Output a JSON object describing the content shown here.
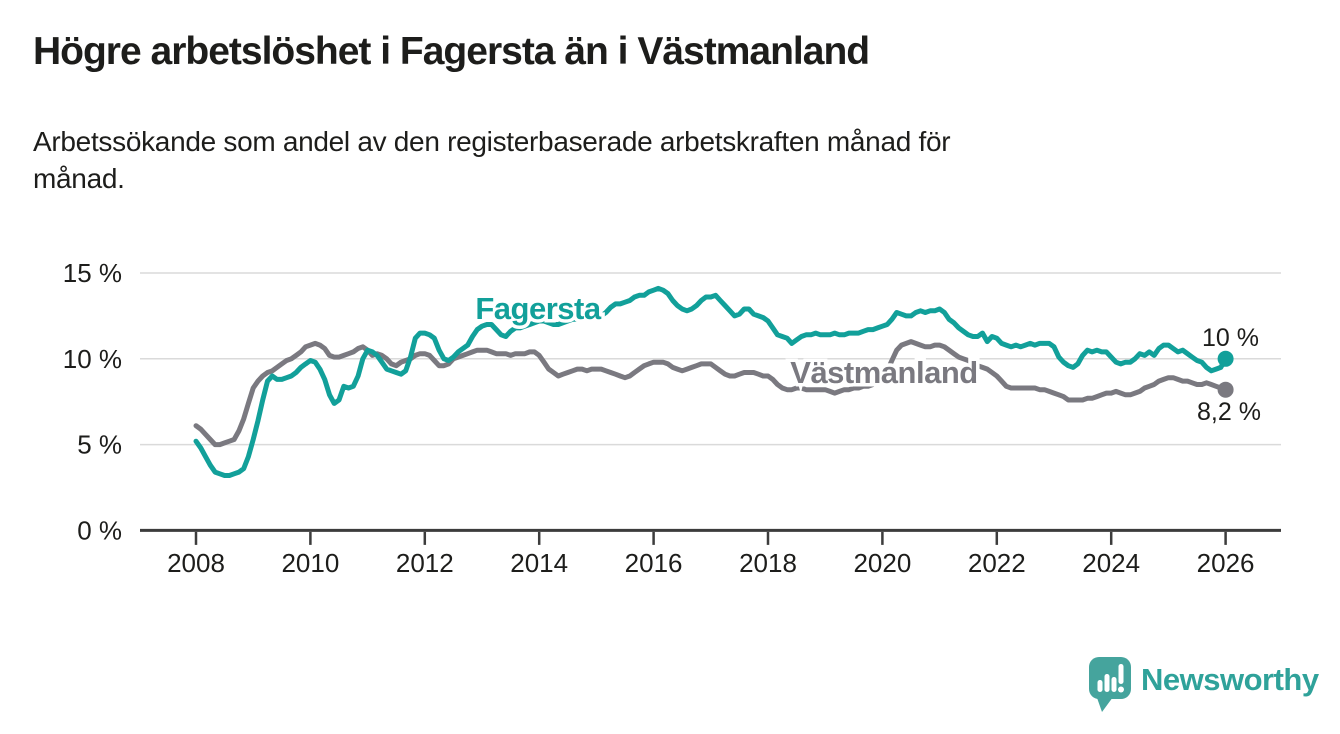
{
  "header": {
    "title": "Högre arbetslöshet i Fagersta än i Västmanland",
    "subtitle": "Arbetssökande som andel av den registerbaserade arbetskraften månad för månad."
  },
  "theme": {
    "background": "#ffffff",
    "text": "#1d1d1b",
    "axis": "#3c3c3c",
    "grid": "#dadada",
    "accent_teal": "#12a09a",
    "accent_gray": "#7a7980",
    "logo_teal": "#45a49d"
  },
  "chart_data": {
    "type": "line",
    "title": "Högre arbetslöshet i Fagersta än i Västmanland",
    "subtitle": "Arbetssökande som andel av den registerbaserade arbetskraften månad för månad.",
    "x_start_year": 2008,
    "x_interval_months": 1,
    "x_end_label": "2026",
    "x_tick_years": [
      2008,
      2010,
      2012,
      2014,
      2016,
      2018,
      2020,
      2022,
      2024,
      2026
    ],
    "y_ticks": [
      {
        "value": 0,
        "label": "0 %"
      },
      {
        "value": 5,
        "label": "5 %"
      },
      {
        "value": 10,
        "label": "10 %"
      },
      {
        "value": 15,
        "label": "15 %"
      }
    ],
    "ylim": [
      0,
      15
    ],
    "grid": true,
    "legend_position": "inline-labels",
    "series": [
      {
        "name": "Västmanland",
        "color": "#7a7980",
        "end_label": "8,2 %",
        "values": [
          6.1,
          5.9,
          5.6,
          5.3,
          5.0,
          5.0,
          5.1,
          5.2,
          5.3,
          5.8,
          6.5,
          7.4,
          8.3,
          8.7,
          9.0,
          9.2,
          9.3,
          9.5,
          9.7,
          9.9,
          10.0,
          10.2,
          10.4,
          10.7,
          10.8,
          10.9,
          10.8,
          10.6,
          10.2,
          10.1,
          10.1,
          10.2,
          10.3,
          10.4,
          10.6,
          10.7,
          10.5,
          10.2,
          10.3,
          10.2,
          10.0,
          9.7,
          9.6,
          9.8,
          9.9,
          10.0,
          10.2,
          10.3,
          10.3,
          10.2,
          9.9,
          9.6,
          9.6,
          9.7,
          10.0,
          10.1,
          10.2,
          10.3,
          10.4,
          10.5,
          10.5,
          10.5,
          10.4,
          10.3,
          10.3,
          10.3,
          10.2,
          10.3,
          10.3,
          10.3,
          10.4,
          10.4,
          10.2,
          9.8,
          9.4,
          9.2,
          9.0,
          9.1,
          9.2,
          9.3,
          9.4,
          9.4,
          9.3,
          9.4,
          9.4,
          9.4,
          9.3,
          9.2,
          9.1,
          9.0,
          8.9,
          9.0,
          9.2,
          9.4,
          9.6,
          9.7,
          9.8,
          9.8,
          9.8,
          9.7,
          9.5,
          9.4,
          9.3,
          9.4,
          9.5,
          9.6,
          9.7,
          9.7,
          9.7,
          9.5,
          9.3,
          9.1,
          9.0,
          9.0,
          9.1,
          9.2,
          9.2,
          9.2,
          9.1,
          9.0,
          9.0,
          8.8,
          8.5,
          8.3,
          8.2,
          8.2,
          8.3,
          8.3,
          8.2,
          8.2,
          8.2,
          8.2,
          8.2,
          8.1,
          8.0,
          8.1,
          8.2,
          8.2,
          8.3,
          8.3,
          8.4,
          8.4,
          8.5,
          8.7,
          9.0,
          9.3,
          9.9,
          10.5,
          10.8,
          10.9,
          11.0,
          10.9,
          10.8,
          10.7,
          10.7,
          10.8,
          10.8,
          10.7,
          10.5,
          10.3,
          10.1,
          10.0,
          9.9,
          9.7,
          9.6,
          9.5,
          9.4,
          9.2,
          9.0,
          8.7,
          8.4,
          8.3,
          8.3,
          8.3,
          8.3,
          8.3,
          8.3,
          8.2,
          8.2,
          8.1,
          8.0,
          7.9,
          7.8,
          7.6,
          7.6,
          7.6,
          7.6,
          7.7,
          7.7,
          7.8,
          7.9,
          8.0,
          8.0,
          8.1,
          8.0,
          7.9,
          7.9,
          8.0,
          8.1,
          8.3,
          8.4,
          8.5,
          8.7,
          8.8,
          8.9,
          8.9,
          8.8,
          8.7,
          8.7,
          8.6,
          8.5,
          8.5,
          8.6,
          8.5,
          8.4,
          8.3,
          8.2
        ]
      },
      {
        "name": "Fagersta",
        "color": "#12a09a",
        "end_label": "10 %",
        "values": [
          5.2,
          4.8,
          4.3,
          3.8,
          3.4,
          3.3,
          3.2,
          3.2,
          3.3,
          3.4,
          3.6,
          4.3,
          5.3,
          6.4,
          7.6,
          8.7,
          9.0,
          8.8,
          8.8,
          8.9,
          9.0,
          9.2,
          9.5,
          9.7,
          9.9,
          9.8,
          9.4,
          8.8,
          7.9,
          7.4,
          7.6,
          8.4,
          8.3,
          8.4,
          9.0,
          10.0,
          10.5,
          10.4,
          10.2,
          9.8,
          9.4,
          9.3,
          9.2,
          9.1,
          9.3,
          10.1,
          11.2,
          11.5,
          11.5,
          11.4,
          11.2,
          10.5,
          10.0,
          9.9,
          10.1,
          10.4,
          10.6,
          10.8,
          11.3,
          11.7,
          11.9,
          12.0,
          12.0,
          11.7,
          11.4,
          11.3,
          11.6,
          11.8,
          11.8,
          11.9,
          12.0,
          12.1,
          12.2,
          12.2,
          12.1,
          12.0,
          12.0,
          12.1,
          12.2,
          12.3,
          12.3,
          12.4,
          12.4,
          12.5,
          12.6,
          12.5,
          12.7,
          13.0,
          13.2,
          13.2,
          13.3,
          13.4,
          13.6,
          13.7,
          13.7,
          13.9,
          14.0,
          14.1,
          14.0,
          13.8,
          13.4,
          13.1,
          12.9,
          12.8,
          12.9,
          13.1,
          13.4,
          13.6,
          13.6,
          13.7,
          13.4,
          13.1,
          12.8,
          12.5,
          12.6,
          12.9,
          12.9,
          12.6,
          12.5,
          12.4,
          12.2,
          11.8,
          11.4,
          11.3,
          11.2,
          10.9,
          11.1,
          11.3,
          11.4,
          11.4,
          11.5,
          11.4,
          11.4,
          11.4,
          11.5,
          11.4,
          11.4,
          11.5,
          11.5,
          11.5,
          11.6,
          11.7,
          11.7,
          11.8,
          11.9,
          12.0,
          12.3,
          12.7,
          12.6,
          12.5,
          12.5,
          12.7,
          12.8,
          12.7,
          12.8,
          12.8,
          12.9,
          12.7,
          12.3,
          12.1,
          11.8,
          11.6,
          11.4,
          11.3,
          11.3,
          11.5,
          11.0,
          11.3,
          11.2,
          10.9,
          10.8,
          10.7,
          10.8,
          10.7,
          10.8,
          10.9,
          10.8,
          10.9,
          10.9,
          10.9,
          10.7,
          10.1,
          9.8,
          9.6,
          9.5,
          9.7,
          10.2,
          10.5,
          10.4,
          10.5,
          10.4,
          10.4,
          10.1,
          9.8,
          9.7,
          9.8,
          9.8,
          10.0,
          10.3,
          10.2,
          10.4,
          10.2,
          10.6,
          10.8,
          10.8,
          10.6,
          10.4,
          10.5,
          10.3,
          10.1,
          9.9,
          9.8,
          9.5,
          9.3,
          9.4,
          9.5,
          10.0
        ]
      }
    ]
  },
  "footer": {
    "brand": "Newsworthy"
  }
}
